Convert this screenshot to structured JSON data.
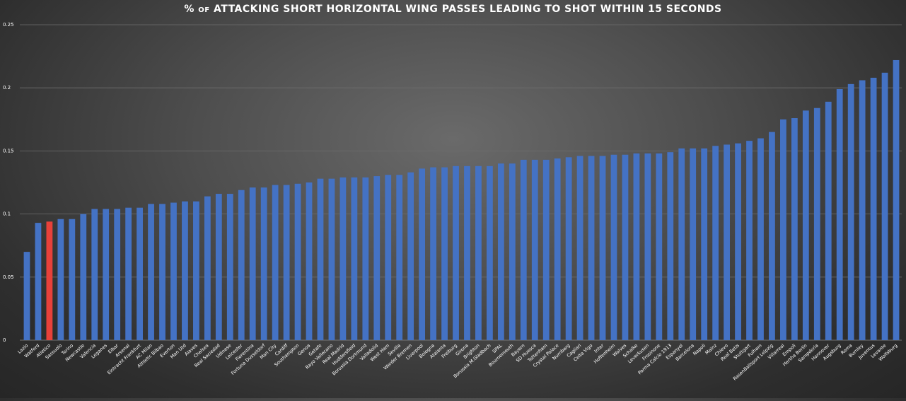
{
  "chart_data": {
    "type": "bar",
    "title": "% of ATTACKING SHORT HORIZONTAL WING PASSES LEADING TO SHOT WITHIN 15 SECONDS",
    "xlabel": "",
    "ylabel": "",
    "ylim": [
      0,
      0.25
    ],
    "yticks": [
      "0",
      "0.05",
      "0.1",
      "0.15",
      "0.2",
      "0.25"
    ],
    "grid": true,
    "legend": "none",
    "bar_color": "#4472c4",
    "highlight_color": "#e8413a",
    "highlight_category": "Atletico",
    "categories": [
      "Lazio",
      "Watford",
      "Atletico",
      "Sassuolo",
      "Torino",
      "Newcastle",
      "Valencia",
      "Leganes",
      "Eibar",
      "Arsenal",
      "Eintracht Frankfurt",
      "AC Milan",
      "Athletic Bilbao",
      "Everton",
      "Man Utd",
      "Alaves",
      "Chelsea",
      "Real Sociedad",
      "Udinese",
      "Leicester",
      "Fiorentina",
      "Fortuna Dusseldorf",
      "Man City",
      "Cardiff",
      "Southampton",
      "Genoa",
      "Getafe",
      "Rayo Vallecano",
      "Real Madrid",
      "Huddersfield",
      "Borussia Dortmund",
      "Valladolid",
      "West Ham",
      "Sevilla",
      "Werder Bremen",
      "Liverpool",
      "Bologna",
      "Atalanta",
      "Freiburg",
      "Girona",
      "Brighton",
      "Borussia M.Gladbach",
      "SPAL",
      "Bournemouth",
      "Bayern",
      "SD Huesca",
      "Tottenham",
      "Crystal Palace",
      "Nurnberg",
      "Cagliari",
      "Celta Vigo",
      "Inter",
      "Hoffenheim",
      "Wolves",
      "Schalke",
      "Leverkusen",
      "Frosinone",
      "Parma Calcio 1913",
      "Espanyol",
      "Barcelona",
      "Napoli",
      "Mainz",
      "Chievo",
      "Real Betis",
      "Stuttgart",
      "Fulham",
      "RasenBallsport Leipzig",
      "Villarreal",
      "Empoli",
      "Hertha Berlin",
      "Sampdoria",
      "Hannover",
      "Augsburg",
      "Roma",
      "Burnley",
      "Juventus",
      "Levante",
      "Wolfsburg"
    ],
    "values": [
      0.07,
      0.093,
      0.094,
      0.096,
      0.096,
      0.1,
      0.104,
      0.104,
      0.104,
      0.105,
      0.105,
      0.108,
      0.108,
      0.109,
      0.11,
      0.11,
      0.114,
      0.116,
      0.116,
      0.119,
      0.121,
      0.121,
      0.123,
      0.123,
      0.124,
      0.125,
      0.128,
      0.128,
      0.129,
      0.129,
      0.129,
      0.13,
      0.131,
      0.131,
      0.133,
      0.136,
      0.137,
      0.137,
      0.138,
      0.138,
      0.138,
      0.138,
      0.14,
      0.14,
      0.143,
      0.143,
      0.143,
      0.144,
      0.145,
      0.146,
      0.146,
      0.146,
      0.147,
      0.147,
      0.148,
      0.148,
      0.148,
      0.149,
      0.152,
      0.152,
      0.152,
      0.154,
      0.155,
      0.156,
      0.158,
      0.16,
      0.165,
      0.175,
      0.176,
      0.182,
      0.184,
      0.189,
      0.199,
      0.203,
      0.206,
      0.208,
      0.212,
      0.222
    ]
  }
}
